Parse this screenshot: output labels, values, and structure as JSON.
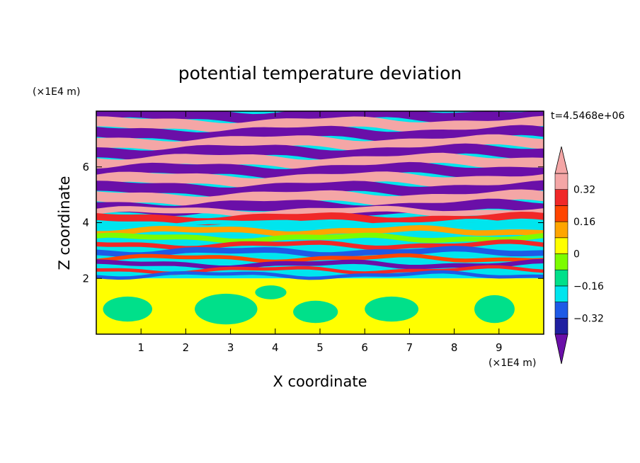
{
  "chart_data": {
    "type": "heatmap",
    "title": "potential temperature deviation",
    "xlabel": "X coordinate",
    "ylabel": "Z coordinate",
    "x_unit": "(×1E4 m)",
    "y_unit": "(×1E4 m)",
    "time_label": "t=4.5468e+06",
    "xlim": [
      0,
      10
    ],
    "ylim": [
      0,
      8
    ],
    "x_ticks": [
      1,
      2,
      3,
      4,
      5,
      6,
      7,
      8,
      9
    ],
    "x_tick_labels": [
      "1",
      "2",
      "3",
      "4",
      "5",
      "6",
      "7",
      "8",
      "9"
    ],
    "y_ticks": [
      2,
      4,
      6
    ],
    "y_tick_labels": [
      "2",
      "4",
      "6"
    ],
    "colorbar": {
      "levels": [
        -0.4,
        -0.32,
        -0.24,
        -0.16,
        -0.08,
        0,
        0.08,
        0.16,
        0.24,
        0.32,
        0.4
      ],
      "tick_values": [
        -0.32,
        -0.16,
        0,
        0.16,
        0.32
      ],
      "tick_labels": [
        "−0.32",
        "−0.16",
        "0",
        "0.16",
        "0.32"
      ],
      "colors": [
        "#6a0fa8",
        "#1f1fa0",
        "#1e5ae6",
        "#00e5ee",
        "#00e08a",
        "#7cfc00",
        "#ffff00",
        "#ffa500",
        "#ff4500",
        "#f02828",
        "#f4a6a6"
      ],
      "extend": "both"
    },
    "regions": {
      "lower_layer_top_z": 2.0,
      "lower_layer_value": 0.04,
      "upper_layer_range_z": [
        4.5,
        8
      ],
      "upper_layer_values": [
        -0.4,
        0.4
      ]
    }
  }
}
